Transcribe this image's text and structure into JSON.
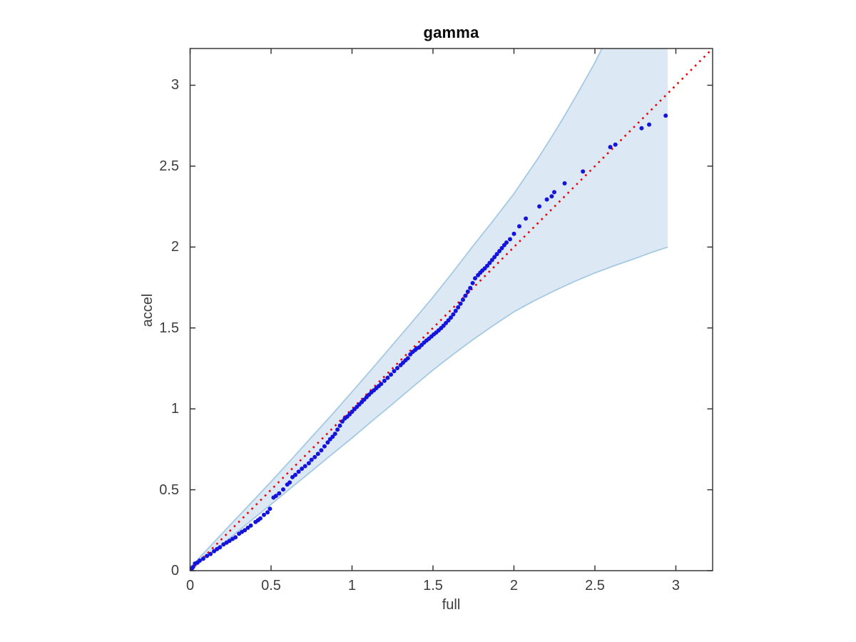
{
  "chart_data": {
    "type": "scatter",
    "title": "gamma",
    "xlabel": "full",
    "ylabel": "accel",
    "xlim": [
      0,
      3.227
    ],
    "ylim": [
      0,
      3.227
    ],
    "xticks": [
      0,
      0.5,
      1,
      1.5,
      2,
      2.5,
      3
    ],
    "xtick_labels": [
      "0",
      "0.5",
      "1",
      "1.5",
      "2",
      "2.5",
      "3"
    ],
    "yticks": [
      0,
      0.5,
      1,
      1.5,
      2,
      2.5,
      3
    ],
    "ytick_labels": [
      "0",
      "0.5",
      "1",
      "1.5",
      "2",
      "2.5",
      "3"
    ],
    "grid": false,
    "legend": false,
    "colors": {
      "points": "#1414dd",
      "reference_line": "#ee0000",
      "band_fill": "#dce9f4",
      "band_stroke": "#a5c9e2",
      "axis": "#2b2b2b",
      "tick_text": "#3d3d3d"
    },
    "reference_line": {
      "name": "identity-reference",
      "style": "dotted",
      "from": [
        0,
        0
      ],
      "to": [
        3.227,
        3.227
      ]
    },
    "band": {
      "name": "confidence-envelope",
      "right_cut_x": 2.95,
      "upper": [
        [
          0,
          0.018
        ],
        [
          0.125,
          0.152
        ],
        [
          0.25,
          0.285
        ],
        [
          0.375,
          0.417
        ],
        [
          0.5,
          0.55
        ],
        [
          0.625,
          0.687
        ],
        [
          0.75,
          0.825
        ],
        [
          0.875,
          0.963
        ],
        [
          1,
          1.105
        ],
        [
          1.125,
          1.249
        ],
        [
          1.25,
          1.395
        ],
        [
          1.375,
          1.541
        ],
        [
          1.5,
          1.69
        ],
        [
          1.625,
          1.848
        ],
        [
          1.75,
          2.01
        ],
        [
          1.875,
          2.167
        ],
        [
          2,
          2.33
        ],
        [
          2.075,
          2.44
        ],
        [
          2.15,
          2.55
        ],
        [
          2.225,
          2.668
        ],
        [
          2.3,
          2.79
        ],
        [
          2.375,
          2.918
        ],
        [
          2.45,
          3.05
        ],
        [
          2.5,
          3.14
        ],
        [
          2.56,
          3.26
        ]
      ],
      "lower": [
        [
          0,
          0
        ],
        [
          0.125,
          0.103
        ],
        [
          0.25,
          0.205
        ],
        [
          0.375,
          0.308
        ],
        [
          0.5,
          0.41
        ],
        [
          0.625,
          0.513
        ],
        [
          0.75,
          0.615
        ],
        [
          0.875,
          0.718
        ],
        [
          1,
          0.82
        ],
        [
          1.125,
          0.926
        ],
        [
          1.25,
          1.03
        ],
        [
          1.375,
          1.136
        ],
        [
          1.5,
          1.24
        ],
        [
          1.625,
          1.337
        ],
        [
          1.75,
          1.43
        ],
        [
          1.875,
          1.517
        ],
        [
          2,
          1.6
        ],
        [
          2.125,
          1.668
        ],
        [
          2.25,
          1.73
        ],
        [
          2.375,
          1.788
        ],
        [
          2.5,
          1.84
        ],
        [
          2.625,
          1.887
        ],
        [
          2.75,
          1.93
        ],
        [
          2.85,
          1.967
        ],
        [
          2.95,
          2.0
        ]
      ]
    },
    "series": [
      {
        "name": "quantile-points",
        "marker": "dot",
        "points": [
          [
            0.004,
            0.006
          ],
          [
            0.01,
            0.012
          ],
          [
            0.018,
            0.022
          ],
          [
            0.03,
            0.044
          ],
          [
            0.045,
            0.05
          ],
          [
            0.059,
            0.062
          ],
          [
            0.081,
            0.074
          ],
          [
            0.104,
            0.091
          ],
          [
            0.126,
            0.103
          ],
          [
            0.148,
            0.12
          ],
          [
            0.166,
            0.133
          ],
          [
            0.184,
            0.144
          ],
          [
            0.206,
            0.162
          ],
          [
            0.225,
            0.173
          ],
          [
            0.243,
            0.184
          ],
          [
            0.262,
            0.196
          ],
          [
            0.28,
            0.206
          ],
          [
            0.302,
            0.228
          ],
          [
            0.32,
            0.24
          ],
          [
            0.338,
            0.25
          ],
          [
            0.357,
            0.265
          ],
          [
            0.375,
            0.279
          ],
          [
            0.404,
            0.301
          ],
          [
            0.42,
            0.312
          ],
          [
            0.434,
            0.323
          ],
          [
            0.456,
            0.345
          ],
          [
            0.478,
            0.36
          ],
          [
            0.493,
            0.382
          ],
          [
            0.515,
            0.452
          ],
          [
            0.53,
            0.462
          ],
          [
            0.55,
            0.478
          ],
          [
            0.575,
            0.502
          ],
          [
            0.6,
            0.532
          ],
          [
            0.615,
            0.545
          ],
          [
            0.632,
            0.578
          ],
          [
            0.65,
            0.592
          ],
          [
            0.67,
            0.612
          ],
          [
            0.69,
            0.63
          ],
          [
            0.71,
            0.646
          ],
          [
            0.733,
            0.664
          ],
          [
            0.75,
            0.685
          ],
          [
            0.77,
            0.702
          ],
          [
            0.79,
            0.722
          ],
          [
            0.81,
            0.744
          ],
          [
            0.83,
            0.768
          ],
          [
            0.85,
            0.792
          ],
          [
            0.865,
            0.812
          ],
          [
            0.88,
            0.828
          ],
          [
            0.895,
            0.846
          ],
          [
            0.91,
            0.872
          ],
          [
            0.925,
            0.896
          ],
          [
            0.94,
            0.922
          ],
          [
            0.955,
            0.94
          ],
          [
            0.97,
            0.952
          ],
          [
            0.985,
            0.966
          ],
          [
            1.0,
            0.982
          ],
          [
            1.015,
            0.998
          ],
          [
            1.03,
            1.012
          ],
          [
            1.045,
            1.027
          ],
          [
            1.06,
            1.042
          ],
          [
            1.075,
            1.057
          ],
          [
            1.09,
            1.072
          ],
          [
            1.105,
            1.087
          ],
          [
            1.12,
            1.102
          ],
          [
            1.135,
            1.115
          ],
          [
            1.15,
            1.128
          ],
          [
            1.165,
            1.141
          ],
          [
            1.18,
            1.154
          ],
          [
            1.2,
            1.173
          ],
          [
            1.22,
            1.192
          ],
          [
            1.24,
            1.212
          ],
          [
            1.26,
            1.233
          ],
          [
            1.28,
            1.252
          ],
          [
            1.3,
            1.27
          ],
          [
            1.315,
            1.285
          ],
          [
            1.33,
            1.3
          ],
          [
            1.345,
            1.313
          ],
          [
            1.36,
            1.337
          ],
          [
            1.375,
            1.352
          ],
          [
            1.39,
            1.364
          ],
          [
            1.4,
            1.374
          ],
          [
            1.415,
            1.38
          ],
          [
            1.43,
            1.395
          ],
          [
            1.445,
            1.41
          ],
          [
            1.46,
            1.422
          ],
          [
            1.475,
            1.434
          ],
          [
            1.49,
            1.447
          ],
          [
            1.505,
            1.46
          ],
          [
            1.52,
            1.472
          ],
          [
            1.535,
            1.485
          ],
          [
            1.55,
            1.499
          ],
          [
            1.565,
            1.514
          ],
          [
            1.58,
            1.53
          ],
          [
            1.595,
            1.547
          ],
          [
            1.61,
            1.564
          ],
          [
            1.625,
            1.584
          ],
          [
            1.64,
            1.605
          ],
          [
            1.655,
            1.627
          ],
          [
            1.67,
            1.65
          ],
          [
            1.685,
            1.674
          ],
          [
            1.7,
            1.699
          ],
          [
            1.715,
            1.724
          ],
          [
            1.73,
            1.747
          ],
          [
            1.745,
            1.777
          ],
          [
            1.76,
            1.807
          ],
          [
            1.778,
            1.826
          ],
          [
            1.792,
            1.842
          ],
          [
            1.805,
            1.855
          ],
          [
            1.82,
            1.868
          ],
          [
            1.835,
            1.884
          ],
          [
            1.85,
            1.902
          ],
          [
            1.865,
            1.92
          ],
          [
            1.88,
            1.938
          ],
          [
            1.895,
            1.956
          ],
          [
            1.91,
            1.975
          ],
          [
            1.925,
            1.993
          ],
          [
            1.94,
            2.012
          ],
          [
            1.954,
            2.028
          ],
          [
            1.976,
            2.048
          ],
          [
            2.0,
            2.082
          ],
          [
            2.033,
            2.128
          ],
          [
            2.073,
            2.176
          ],
          [
            2.157,
            2.251
          ],
          [
            2.203,
            2.294
          ],
          [
            2.233,
            2.313
          ],
          [
            2.249,
            2.339
          ],
          [
            2.313,
            2.394
          ],
          [
            2.426,
            2.467
          ],
          [
            2.595,
            2.618
          ],
          [
            2.626,
            2.633
          ],
          [
            2.788,
            2.734
          ],
          [
            2.835,
            2.757
          ],
          [
            2.937,
            2.812
          ]
        ]
      }
    ]
  }
}
